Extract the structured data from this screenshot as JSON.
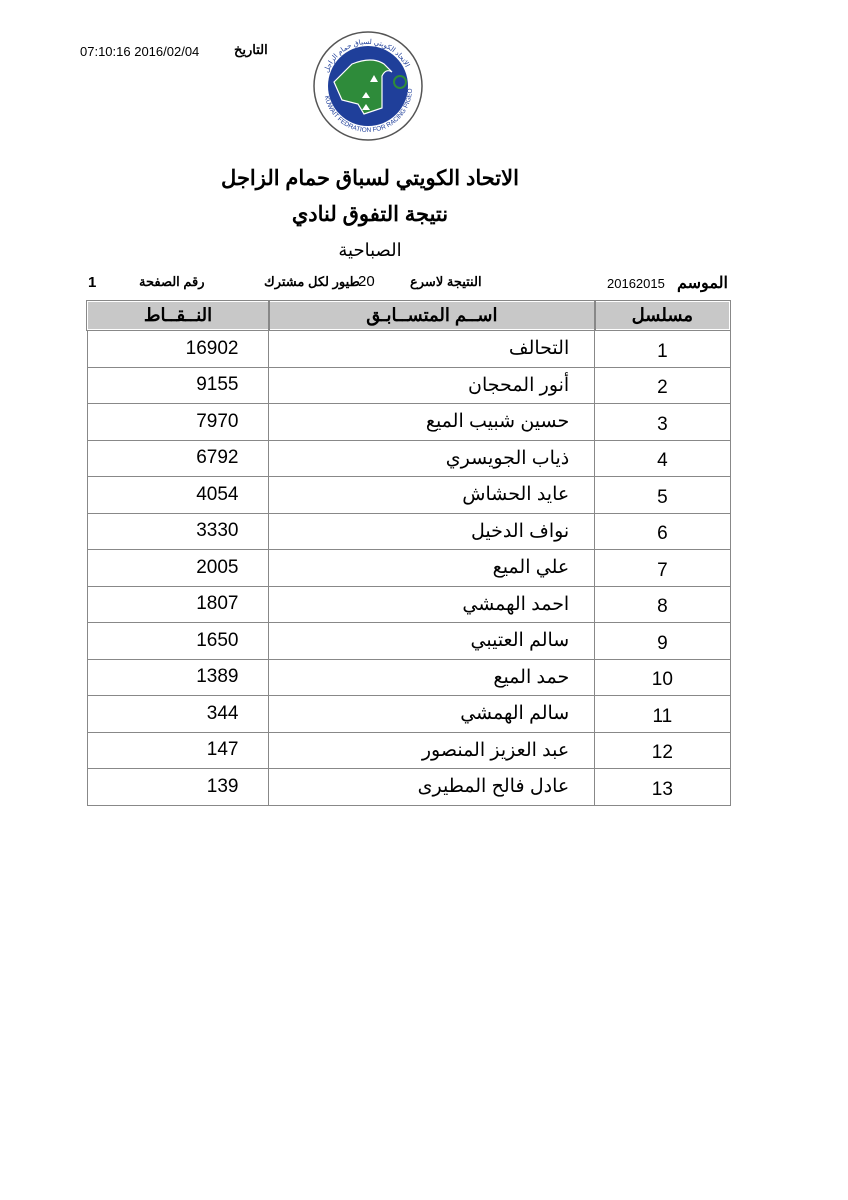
{
  "header": {
    "date_label": "التاريخ",
    "date_value": "07:10:16 2016/02/04",
    "logo_text_ar": "الاتحاد الكويتي لسباق حمام الزاجل",
    "logo_text_en": "KUWAIT FEDRATION FOR RACING PIGEON",
    "title": "الاتحاد الكويتي لسباق حمام الزاجل",
    "subtitle": "نتيجة التفوق لنادي",
    "club": "الصباحية"
  },
  "info": {
    "season_label": "الموسم",
    "season_value": "20162015",
    "result_label": "النتيجة لاسرع",
    "result_count": "20",
    "birds_label": "طيور لكل مشترك",
    "page_label": "رقم الصفحة",
    "page_number": "1"
  },
  "table": {
    "columns": {
      "serial": "مسلسل",
      "name": "اســم المتســابـق",
      "points": "النــقــاط"
    },
    "rows": [
      {
        "serial": "1",
        "name": "التحالف",
        "points": "16902"
      },
      {
        "serial": "2",
        "name": "أنور المحجان",
        "points": "9155"
      },
      {
        "serial": "3",
        "name": "حسين شبيب الميع",
        "points": "7970"
      },
      {
        "serial": "4",
        "name": "ذياب الجويسري",
        "points": "6792"
      },
      {
        "serial": "5",
        "name": "عايد الحشاش",
        "points": "4054"
      },
      {
        "serial": "6",
        "name": "نواف الدخيل",
        "points": "3330"
      },
      {
        "serial": "7",
        "name": "علي الميع",
        "points": "2005"
      },
      {
        "serial": "8",
        "name": "احمد الهمشي",
        "points": "1807"
      },
      {
        "serial": "9",
        "name": "سالم العتيبي",
        "points": "1650"
      },
      {
        "serial": "10",
        "name": "حمد الميع",
        "points": "1389"
      },
      {
        "serial": "11",
        "name": "سالم الهمشي",
        "points": "344"
      },
      {
        "serial": "12",
        "name": "عبد العزيز المنصور",
        "points": "147"
      },
      {
        "serial": "13",
        "name": "عادل فالح المطيرى",
        "points": "139"
      }
    ]
  },
  "colors": {
    "header_bg": "#c8c8c8",
    "logo_green": "#2e8b3a",
    "logo_blue": "#1f3f9a"
  }
}
